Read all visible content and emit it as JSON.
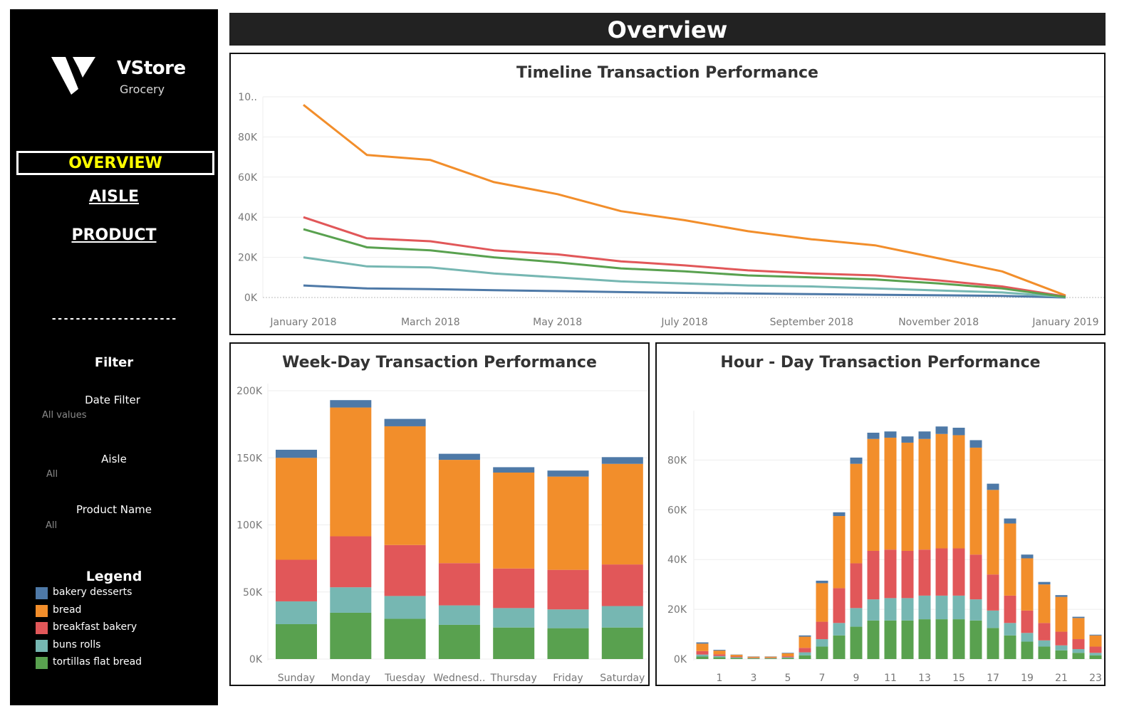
{
  "sidebar": {
    "logo": {
      "name": "VStore",
      "subtitle": "Grocery"
    },
    "nav": {
      "overview": "OVERVIEW",
      "aisle": "AISLE",
      "product": "PRODUCT"
    },
    "divider": "---------------------",
    "filter": {
      "title": "Filter",
      "date_label": "Date Filter",
      "date_value": "All values",
      "aisle_label": "Aisle",
      "aisle_value": "All",
      "product_label": "Product Name",
      "product_value": "All"
    },
    "legend": {
      "title": "Legend",
      "items": [
        {
          "label": "bakery desserts",
          "color": "#4e79a7"
        },
        {
          "label": "bread",
          "color": "#f28e2b"
        },
        {
          "label": "breakfast bakery",
          "color": "#e15759"
        },
        {
          "label": "buns rolls",
          "color": "#76b7b2"
        },
        {
          "label": "tortillas flat bread",
          "color": "#59a14f"
        }
      ]
    }
  },
  "header": {
    "title": "Overview"
  },
  "chart_data": [
    {
      "type": "line",
      "title": "Timeline Transaction Performance",
      "x": [
        "2018-01",
        "2018-02",
        "2018-03",
        "2018-04",
        "2018-05",
        "2018-06",
        "2018-07",
        "2018-08",
        "2018-09",
        "2018-10",
        "2018-11",
        "2018-12",
        "2019-01"
      ],
      "x_tick_labels": [
        "January 2018",
        "March 2018",
        "May 2018",
        "July 2018",
        "September 2018",
        "November 2018",
        "January 2019"
      ],
      "y_tick_labels": [
        "0K",
        "20K",
        "40K",
        "60K",
        "80K",
        "10.."
      ],
      "ylim": [
        0,
        100000
      ],
      "grid": true,
      "series": [
        {
          "name": "bakery desserts",
          "color": "#4e79a7",
          "values": [
            6000,
            4500,
            4200,
            3600,
            3200,
            2700,
            2300,
            2000,
            1700,
            1400,
            1100,
            800,
            0
          ]
        },
        {
          "name": "bread",
          "color": "#f28e2b",
          "values": [
            96000,
            71000,
            68500,
            57500,
            51500,
            43000,
            38500,
            33000,
            29000,
            26000,
            19500,
            13000,
            1000
          ]
        },
        {
          "name": "breakfast bakery",
          "color": "#e15759",
          "values": [
            40000,
            29500,
            28000,
            23500,
            21500,
            18000,
            16000,
            13500,
            12000,
            11000,
            8500,
            5500,
            500
          ]
        },
        {
          "name": "buns rolls",
          "color": "#76b7b2",
          "values": [
            20000,
            15500,
            15000,
            12000,
            10000,
            8000,
            7000,
            6000,
            5500,
            4500,
            3500,
            2500,
            200
          ]
        },
        {
          "name": "tortillas flat bread",
          "color": "#59a14f",
          "values": [
            34000,
            25000,
            23500,
            20000,
            17500,
            14500,
            13000,
            11000,
            10000,
            9000,
            7000,
            4500,
            300
          ]
        }
      ]
    },
    {
      "type": "bar",
      "stacked": true,
      "title": "Week-Day Transaction Performance",
      "categories": [
        "Sunday",
        "Monday",
        "Tuesday",
        "Wednesd..",
        "Thursday",
        "Friday",
        "Saturday"
      ],
      "y_tick_labels": [
        "0K",
        "50K",
        "100K",
        "150K",
        "200K"
      ],
      "ylim": [
        0,
        200000
      ],
      "series": [
        {
          "name": "tortillas flat bread",
          "color": "#59a14f",
          "values": [
            26000,
            34500,
            30000,
            25500,
            23500,
            23000,
            23500
          ]
        },
        {
          "name": "buns rolls",
          "color": "#76b7b2",
          "values": [
            17000,
            19000,
            17000,
            14500,
            14500,
            14000,
            16000
          ]
        },
        {
          "name": "breakfast bakery",
          "color": "#e15759",
          "values": [
            31000,
            38000,
            38000,
            31500,
            29500,
            29500,
            31000
          ]
        },
        {
          "name": "bread",
          "color": "#f28e2b",
          "values": [
            76000,
            96000,
            88500,
            77000,
            71500,
            69500,
            75000
          ]
        },
        {
          "name": "bakery desserts",
          "color": "#4e79a7",
          "values": [
            6000,
            5500,
            5500,
            4500,
            4000,
            4500,
            5000
          ]
        }
      ]
    },
    {
      "type": "bar",
      "stacked": true,
      "title": "Hour - Day Transaction Performance",
      "categories": [
        "0",
        "1",
        "2",
        "3",
        "4",
        "5",
        "6",
        "7",
        "8",
        "9",
        "10",
        "11",
        "12",
        "13",
        "14",
        "15",
        "16",
        "17",
        "18",
        "19",
        "20",
        "21",
        "22",
        "23"
      ],
      "x_tick_labels": [
        "1",
        "3",
        "5",
        "7",
        "9",
        "11",
        "13",
        "15",
        "17",
        "19",
        "21",
        "23"
      ],
      "y_tick_labels": [
        "0K",
        "20K",
        "40K",
        "60K",
        "80K"
      ],
      "ylim": [
        0,
        97000
      ],
      "series": [
        {
          "name": "tortillas flat bread",
          "color": "#59a14f",
          "values": [
            1000,
            700,
            400,
            250,
            250,
            400,
            1500,
            5000,
            9500,
            13000,
            15500,
            15500,
            15500,
            16000,
            16000,
            16000,
            15500,
            12500,
            9500,
            7000,
            5000,
            3500,
            2500,
            1500
          ]
        },
        {
          "name": "buns rolls",
          "color": "#76b7b2",
          "values": [
            800,
            500,
            300,
            150,
            150,
            300,
            1200,
            3000,
            5000,
            7500,
            8500,
            9000,
            9000,
            9500,
            9500,
            9500,
            8500,
            7000,
            5000,
            3500,
            2500,
            2000,
            1500,
            1000
          ]
        },
        {
          "name": "breakfast bakery",
          "color": "#e15759",
          "values": [
            1400,
            700,
            300,
            150,
            150,
            400,
            1800,
            7000,
            14000,
            18000,
            19500,
            19500,
            19000,
            18500,
            19000,
            19000,
            18000,
            14500,
            11000,
            9000,
            7000,
            5500,
            4000,
            2500
          ]
        },
        {
          "name": "bread",
          "color": "#f28e2b",
          "values": [
            3000,
            1500,
            700,
            400,
            400,
            1200,
            4500,
            15500,
            29000,
            40000,
            45000,
            45000,
            43500,
            44500,
            46000,
            45500,
            43000,
            34000,
            29000,
            21000,
            15500,
            14000,
            8500,
            4500
          ]
        },
        {
          "name": "bakery desserts",
          "color": "#4e79a7",
          "values": [
            500,
            300,
            100,
            100,
            100,
            200,
            500,
            1000,
            1500,
            2500,
            2500,
            2500,
            2500,
            3000,
            3000,
            3000,
            3000,
            2500,
            2000,
            1500,
            1000,
            700,
            500,
            300
          ]
        }
      ]
    }
  ]
}
